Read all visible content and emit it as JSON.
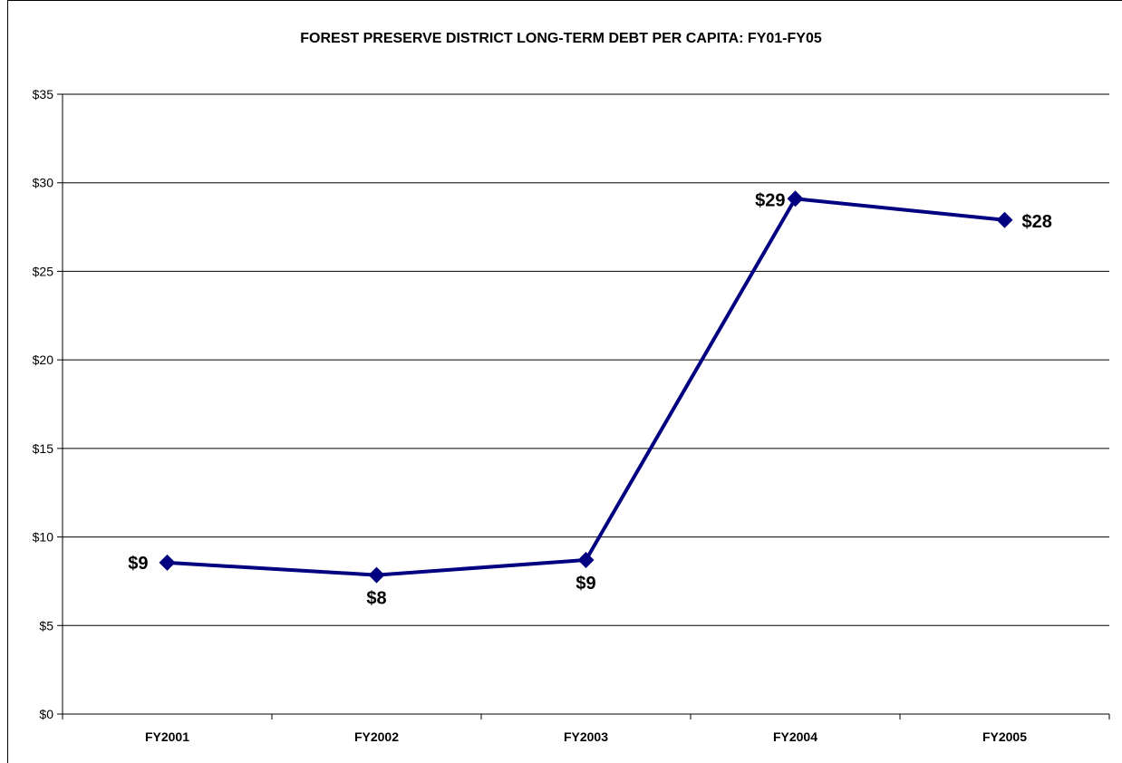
{
  "chart_data": {
    "type": "line",
    "title": "FOREST PRESERVE DISTRICT LONG-TERM DEBT PER CAPITA: FY01-FY05",
    "xlabel": "",
    "ylabel": "",
    "categories": [
      "FY2001",
      "FY2002",
      "FY2003",
      "FY2004",
      "FY2005"
    ],
    "series": [
      {
        "values": [
          8.55,
          7.85,
          8.7,
          29.1,
          27.9
        ],
        "data_labels": [
          "$9",
          "$8",
          "$9",
          "$29",
          "$28"
        ],
        "color": "#000080"
      }
    ],
    "ylim": [
      0,
      35
    ],
    "y_ticks": [
      0,
      5,
      10,
      15,
      20,
      25,
      30,
      35
    ],
    "y_tick_labels": [
      "$0",
      "$5",
      "$10",
      "$15",
      "$20",
      "$25",
      "$30",
      "$35"
    ],
    "grid": true,
    "legend": "none"
  }
}
